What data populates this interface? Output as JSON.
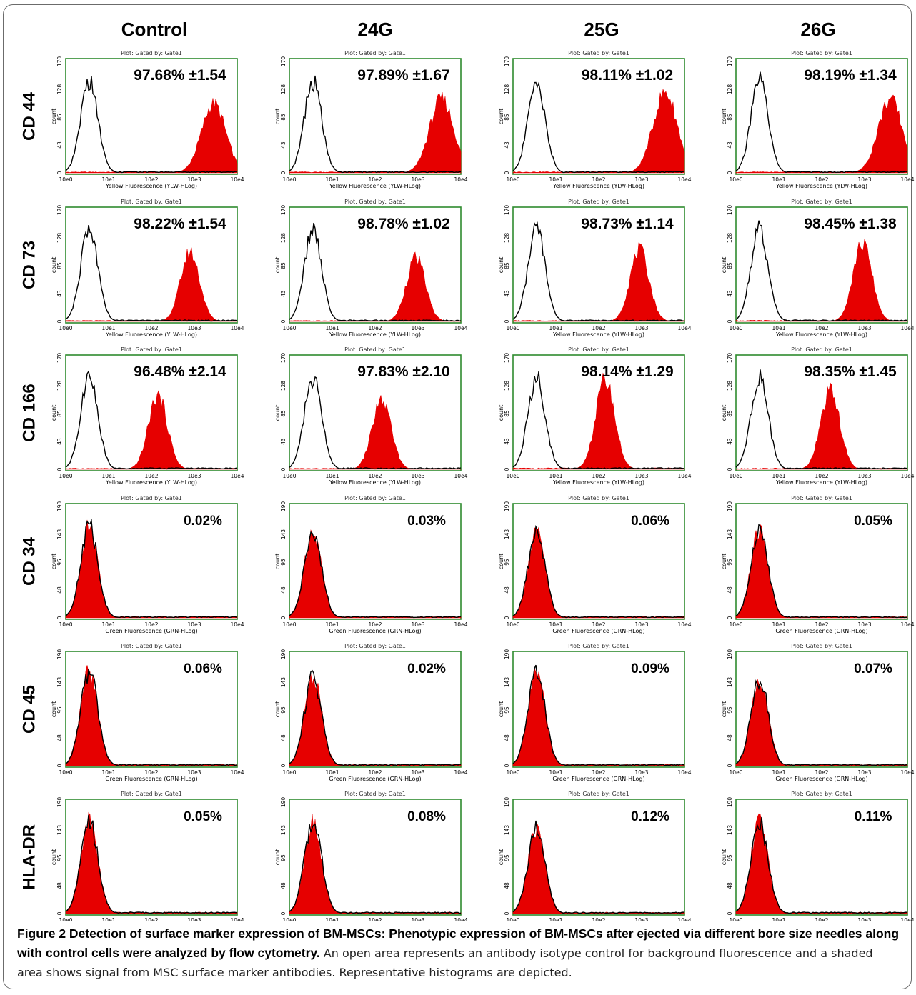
{
  "figure": {
    "columns": [
      "Control",
      "24G",
      "25G",
      "26G"
    ],
    "rows": [
      "CD 44",
      "CD 73",
      "CD 166",
      "CD 34",
      "CD 45",
      "HLA-DR"
    ],
    "plot_subtitle": "Plot: Gated by: Gate1",
    "ylabel": "count",
    "xlabel_yellow": "Yellow Fluorescence (YLW-HLog)",
    "xlabel_green": "Green Fluorescence (GRN-HLog)",
    "x_ticks": [
      "10e0",
      "10e1",
      "10e2",
      "10e3",
      "10e4"
    ],
    "y_ticks_rows": [
      [
        "0",
        "43",
        "85",
        "128",
        "170"
      ],
      [
        "0",
        "43",
        "85",
        "128",
        "170"
      ],
      [
        "0",
        "43",
        "85",
        "128",
        "170"
      ],
      [
        "0",
        "48",
        "95",
        "143",
        "190"
      ],
      [
        "0",
        "48",
        "95",
        "143",
        "190"
      ],
      [
        "0",
        "48",
        "95",
        "143",
        "190"
      ]
    ],
    "colors": {
      "isotype": "#000000",
      "marker": "#e60000",
      "plot_frame": "#2e8b2e"
    },
    "percentages": [
      [
        "97.68% ±1.54",
        "97.89% ±1.67",
        "98.11% ±1.02",
        "98.19% ±1.34"
      ],
      [
        "98.22% ±1.54",
        "98.78% ±1.02",
        "98.73% ±1.14",
        "98.45% ±1.38"
      ],
      [
        "96.48% ±2.14",
        "97.83% ±2.10",
        "98.14% ±1.29",
        "98.35% ±1.45"
      ],
      [
        "0.02%",
        "0.03%",
        "0.06%",
        "0.05%"
      ],
      [
        "0.06%",
        "0.02%",
        "0.09%",
        "0.07%"
      ],
      [
        "0.05%",
        "0.08%",
        "0.12%",
        "0.11%"
      ]
    ]
  },
  "chart_data": {
    "type": "area",
    "x_scale": "log",
    "xlim": [
      1,
      10000
    ],
    "x_ticks": [
      "10e0",
      "10e1",
      "10e2",
      "10e3",
      "10e4"
    ],
    "isotype_peak_log10": 0.55,
    "marker_peak_log10": [
      [
        3.45,
        3.55,
        3.55,
        3.6
      ],
      [
        2.9,
        2.95,
        2.95,
        2.95
      ],
      [
        2.15,
        2.15,
        2.15,
        2.2
      ],
      [
        0.55,
        0.55,
        0.55,
        0.55
      ],
      [
        0.55,
        0.55,
        0.55,
        0.55
      ],
      [
        0.55,
        0.55,
        0.55,
        0.55
      ]
    ],
    "marker_peak_height": [
      [
        0.62,
        0.66,
        0.72,
        0.66
      ],
      [
        0.62,
        0.57,
        0.64,
        0.7
      ],
      [
        0.66,
        0.62,
        0.8,
        0.7
      ],
      [
        0.82,
        0.78,
        0.76,
        0.78
      ],
      [
        0.84,
        0.8,
        0.82,
        0.78
      ],
      [
        0.84,
        0.82,
        0.76,
        0.82
      ]
    ]
  },
  "caption": {
    "bold": "Figure 2 Detection of surface marker expression of BM-MSCs: Phenotypic expression of BM-MSCs after ejected via different bore size needles along with control cells were analyzed by flow cytometry.",
    "text": " An open area represents an antibody isotype control for background fluorescence and a shaded area shows signal from MSC surface marker antibodies. Representative histograms are depicted."
  }
}
